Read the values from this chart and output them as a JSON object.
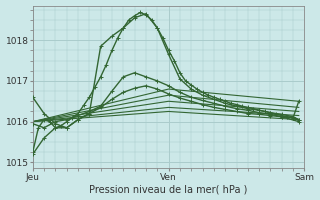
{
  "title": "Pression niveau de la mer( hPa )",
  "xlabel_jeu": "Jeu",
  "xlabel_ven": "Ven",
  "xlabel_sam": "Sam",
  "background_color": "#cce8e8",
  "grid_color": "#aacccc",
  "line_color_main": "#336633",
  "line_color_fan": "#336633",
  "ylim": [
    1014.85,
    1018.85
  ],
  "yticks": [
    1015,
    1016,
    1017,
    1018
  ],
  "total_hours": 48,
  "xtick_positions": [
    0,
    24,
    48
  ],
  "series": [
    {
      "x": [
        0,
        1,
        2,
        3,
        4,
        5,
        6,
        7,
        8,
        9,
        10,
        11,
        12,
        13,
        14,
        15,
        16,
        17,
        18,
        19,
        20,
        21,
        22,
        23,
        24,
        25,
        26,
        27,
        28,
        29,
        30,
        31,
        32,
        33,
        34,
        35,
        36,
        37,
        38,
        39,
        40,
        41,
        42,
        43,
        44,
        45,
        46,
        47
      ],
      "y": [
        1015.25,
        1015.85,
        1016.05,
        1016.0,
        1015.85,
        1015.9,
        1016.0,
        1016.1,
        1016.2,
        1016.4,
        1016.6,
        1016.85,
        1017.1,
        1017.4,
        1017.75,
        1018.05,
        1018.3,
        1018.5,
        1018.6,
        1018.68,
        1018.62,
        1018.5,
        1018.3,
        1018.05,
        1017.75,
        1017.5,
        1017.2,
        1017.0,
        1016.9,
        1016.8,
        1016.72,
        1016.65,
        1016.6,
        1016.55,
        1016.5,
        1016.45,
        1016.42,
        1016.38,
        1016.35,
        1016.32,
        1016.28,
        1016.25,
        1016.22,
        1016.18,
        1016.15,
        1016.12,
        1016.1,
        1016.05
      ],
      "marker": "+",
      "markersize": 2.5,
      "linewidth": 1.0,
      "zorder": 4
    },
    {
      "x": [
        0,
        2,
        4,
        6,
        8,
        10,
        12,
        14,
        16,
        18,
        20,
        22,
        24,
        26,
        28,
        30,
        32,
        34,
        36,
        38,
        40,
        42,
        44,
        46,
        47
      ],
      "y": [
        1016.6,
        1016.2,
        1015.95,
        1015.85,
        1016.05,
        1016.2,
        1017.85,
        1018.1,
        1018.3,
        1018.55,
        1018.65,
        1018.3,
        1017.65,
        1017.05,
        1016.8,
        1016.65,
        1016.55,
        1016.45,
        1016.38,
        1016.32,
        1016.28,
        1016.22,
        1016.18,
        1016.12,
        1016.05
      ],
      "marker": "+",
      "markersize": 2.5,
      "linewidth": 1.0,
      "zorder": 4
    },
    {
      "x": [
        0,
        2,
        4,
        6,
        8,
        10,
        12,
        14,
        16,
        18,
        20,
        22,
        24,
        26,
        28,
        30,
        32,
        34,
        36,
        38,
        40,
        42,
        44,
        46,
        47
      ],
      "y": [
        1015.2,
        1015.6,
        1015.85,
        1015.85,
        1016.05,
        1016.2,
        1016.35,
        1016.55,
        1016.72,
        1016.82,
        1016.88,
        1016.8,
        1016.68,
        1016.58,
        1016.5,
        1016.42,
        1016.35,
        1016.3,
        1016.25,
        1016.2,
        1016.18,
        1016.15,
        1016.12,
        1016.1,
        1016.5
      ],
      "marker": "+",
      "markersize": 2.5,
      "linewidth": 1.0,
      "zorder": 4
    },
    {
      "x": [
        0,
        2,
        4,
        6,
        8,
        10,
        12,
        14,
        16,
        18,
        20,
        22,
        24,
        26,
        28,
        30,
        32,
        34,
        36,
        38,
        40,
        42,
        44,
        47
      ],
      "y": [
        1015.95,
        1015.85,
        1016.0,
        1016.05,
        1016.15,
        1016.25,
        1016.38,
        1016.75,
        1017.1,
        1017.2,
        1017.1,
        1017.0,
        1016.88,
        1016.72,
        1016.6,
        1016.52,
        1016.45,
        1016.38,
        1016.32,
        1016.28,
        1016.22,
        1016.18,
        1016.12,
        1016.0
      ],
      "marker": "+",
      "markersize": 2.5,
      "linewidth": 1.0,
      "zorder": 4
    },
    {
      "x": [
        0,
        24,
        47
      ],
      "y": [
        1016.0,
        1016.25,
        1016.05
      ],
      "marker": null,
      "markersize": 0,
      "linewidth": 0.8,
      "zorder": 2
    },
    {
      "x": [
        0,
        24,
        47
      ],
      "y": [
        1016.0,
        1016.35,
        1016.15
      ],
      "marker": null,
      "markersize": 0,
      "linewidth": 0.8,
      "zorder": 2
    },
    {
      "x": [
        0,
        24,
        47
      ],
      "y": [
        1016.0,
        1016.5,
        1016.25
      ],
      "marker": null,
      "markersize": 0,
      "linewidth": 0.8,
      "zorder": 2
    },
    {
      "x": [
        0,
        24,
        47
      ],
      "y": [
        1016.0,
        1016.65,
        1016.35
      ],
      "marker": null,
      "markersize": 0,
      "linewidth": 0.8,
      "zorder": 2
    },
    {
      "x": [
        0,
        24,
        47
      ],
      "y": [
        1016.0,
        1016.8,
        1016.5
      ],
      "marker": null,
      "markersize": 0,
      "linewidth": 0.8,
      "zorder": 2
    }
  ]
}
